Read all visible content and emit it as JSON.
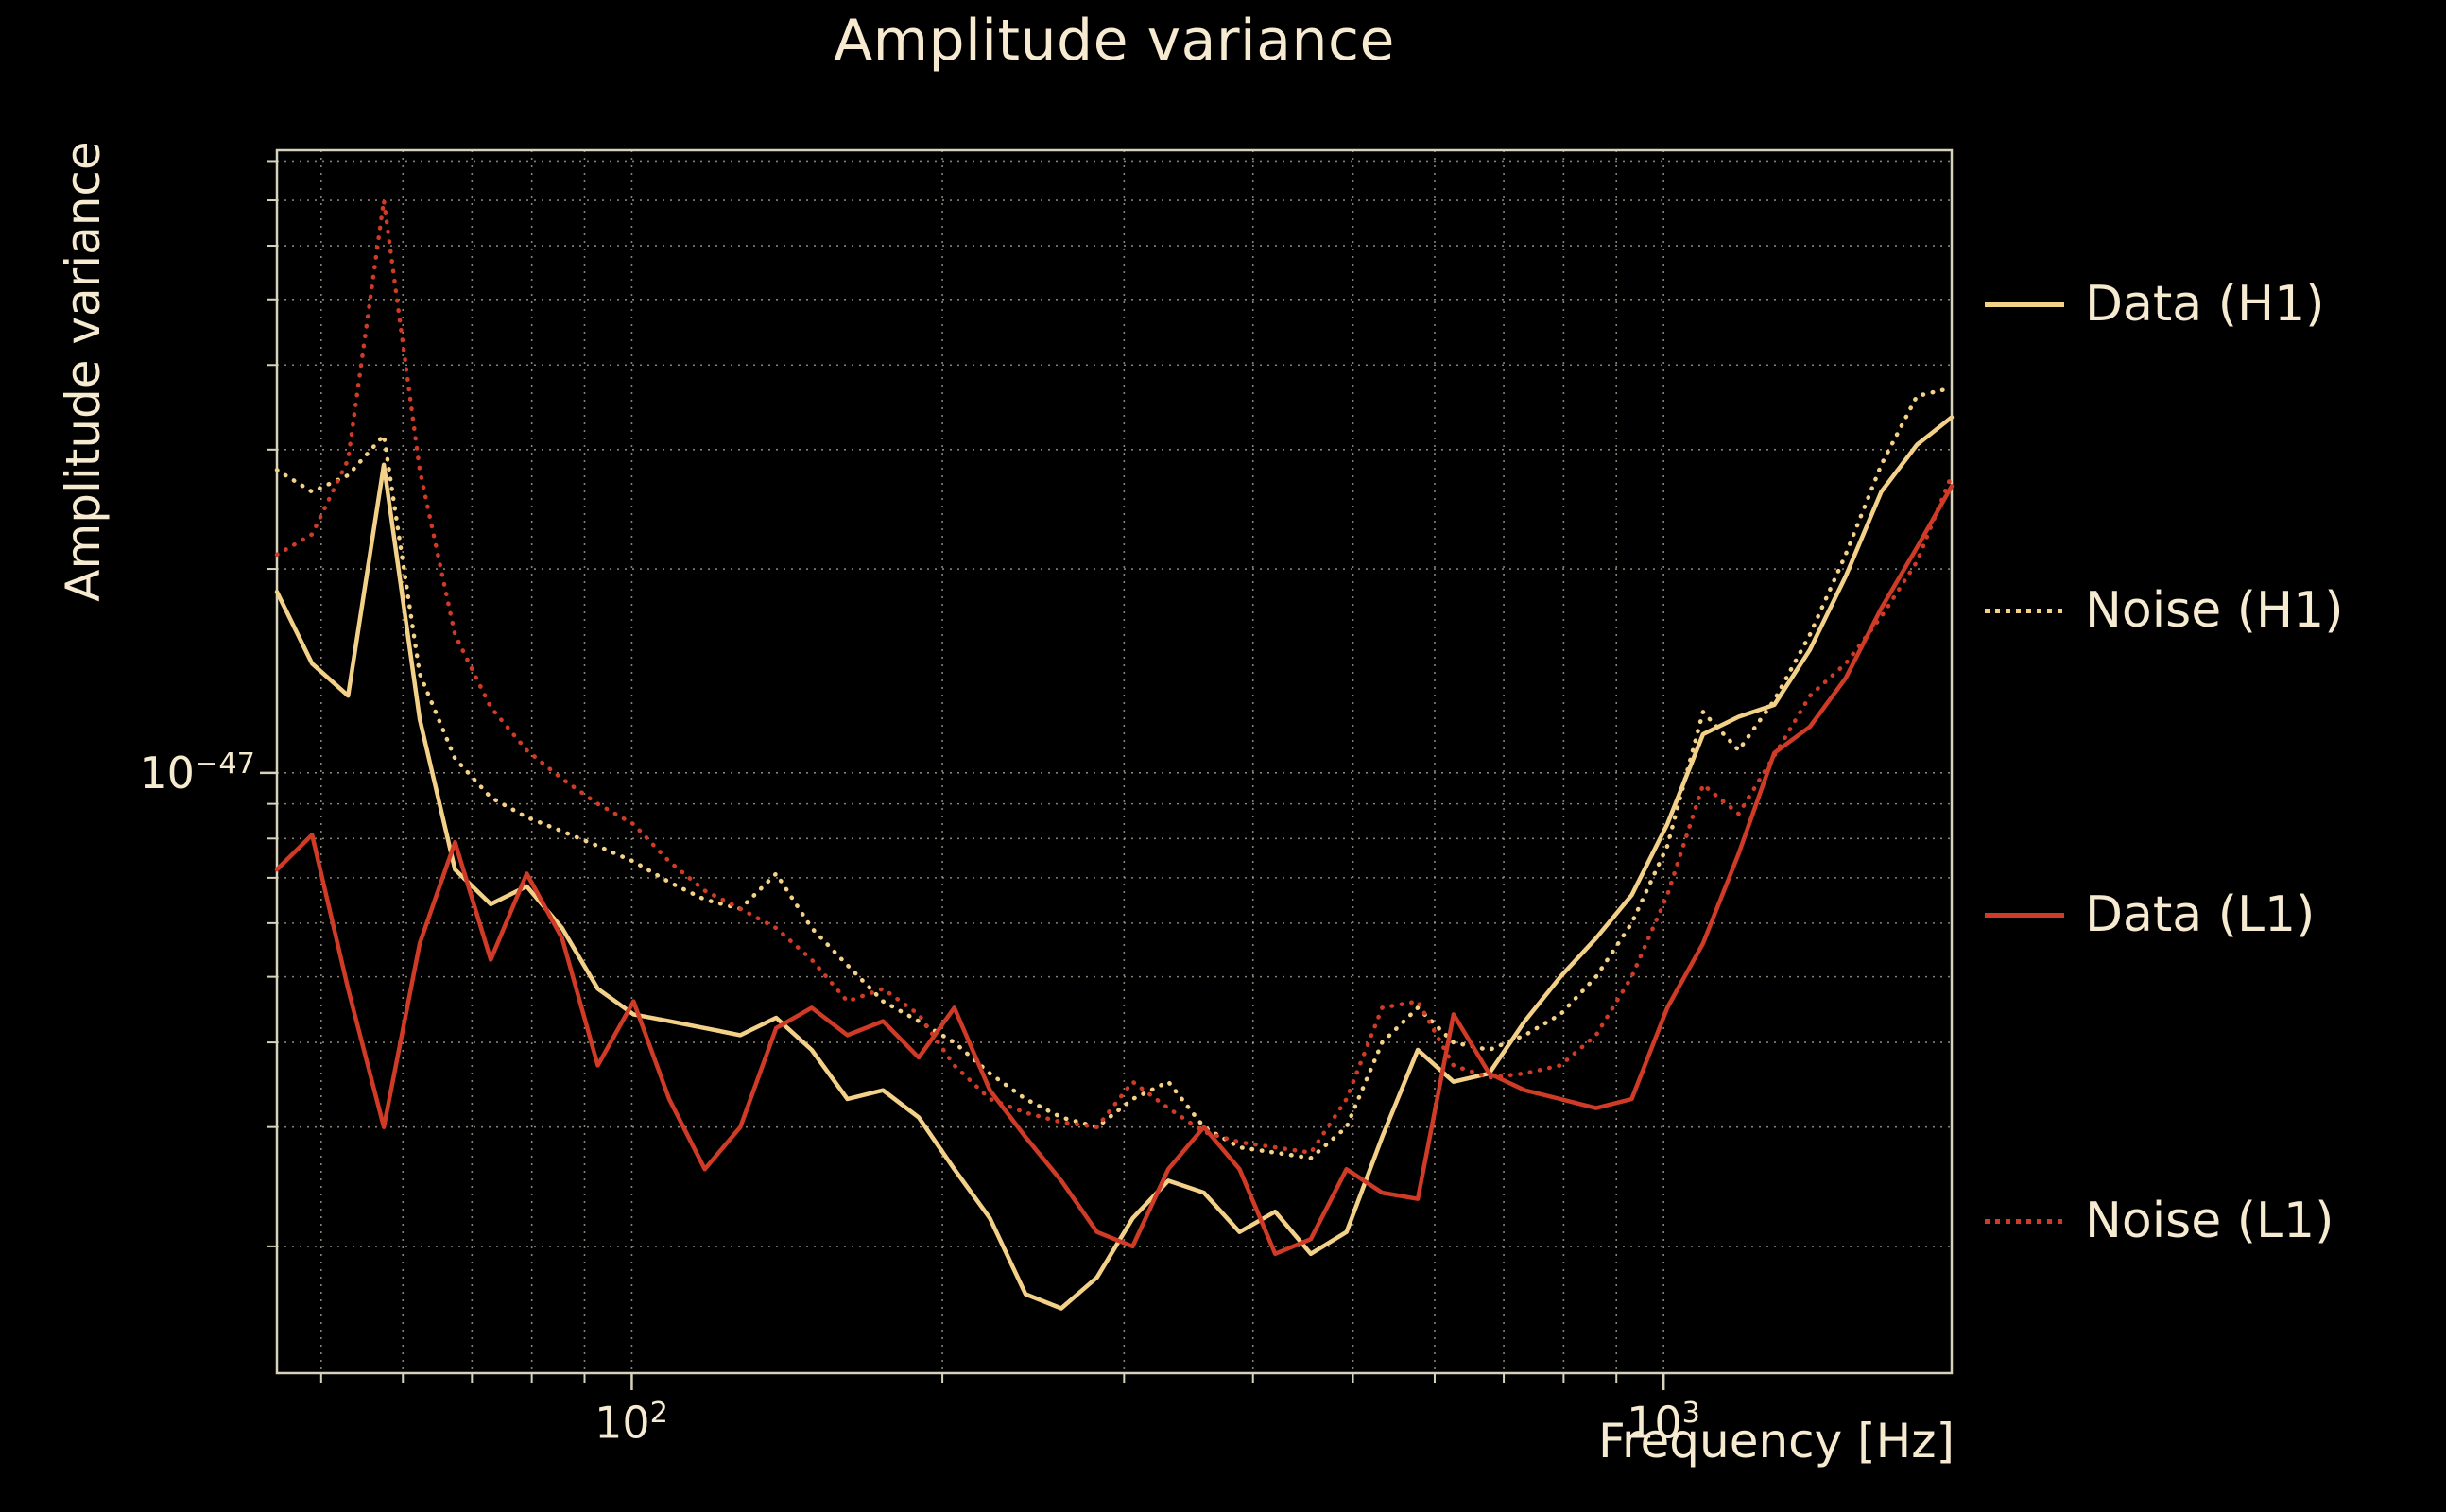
{
  "figure": {
    "background": "#000000",
    "text_color": "#f6ead0",
    "spine_color": "#d9d2ba",
    "grid_color": "#a8a295"
  },
  "chart_data": {
    "type": "line",
    "title": "Amplitude variance",
    "xlabel": "Frequency [Hz]",
    "ylabel": "Amplitude variance",
    "x_scale": "log",
    "y_scale": "log",
    "grid": "both-axes, dotted minor and major",
    "legend_position": "outside-right",
    "xlim": [
      45.3,
      1902
    ],
    "ylim": [
      1.3e-48,
      8.3e-47
    ],
    "x_ticks": [
      {
        "base": "10",
        "exp": "2",
        "value": 100
      },
      {
        "base": "10",
        "exp": "3",
        "value": 1000
      }
    ],
    "y_ticks": [
      {
        "base": "10",
        "exp": "−47",
        "value": 1e-47
      }
    ],
    "values_unit": "1e-48",
    "x_hz": [
      45.3,
      49.0,
      53.1,
      57.5,
      62.3,
      67.4,
      73.0,
      79.1,
      85.6,
      92.7,
      100.4,
      108.7,
      117.7,
      127.4,
      138.0,
      149.4,
      161.8,
      175.2,
      189.7,
      205.4,
      222.4,
      240.8,
      260.8,
      282.4,
      305.8,
      331.1,
      358.5,
      388.2,
      420.3,
      455.1,
      492.8,
      533.6,
      577.8,
      625.7,
      677.5,
      733.6,
      794.3,
      860.1,
      931.3,
      1008.4,
      1091.9,
      1182.3,
      1280.2,
      1386.3,
      1501.1,
      1625.4,
      1760.0,
      1902.0
    ],
    "series": [
      {
        "name": "Data (H1)",
        "color": "#f3d189",
        "line_style": "solid",
        "values": [
          18.5,
          14.5,
          13.0,
          28.5,
          12.0,
          7.2,
          6.4,
          6.8,
          5.9,
          4.8,
          4.4,
          4.3,
          4.2,
          4.1,
          4.35,
          3.9,
          3.3,
          3.4,
          3.1,
          2.6,
          2.2,
          1.7,
          1.62,
          1.8,
          2.2,
          2.5,
          2.4,
          2.1,
          2.25,
          1.95,
          2.1,
          2.9,
          3.9,
          3.5,
          3.6,
          4.3,
          5.0,
          5.7,
          6.6,
          8.4,
          11.4,
          12.1,
          12.6,
          15.2,
          19.5,
          26.0,
          30.5,
          33.5
        ]
      },
      {
        "name": "Noise (H1)",
        "color": "#f3d189",
        "line_style": "dotted",
        "values": [
          28.0,
          26.0,
          27.5,
          31.5,
          14.0,
          10.5,
          9.2,
          8.6,
          8.2,
          7.8,
          7.4,
          6.9,
          6.5,
          6.3,
          7.1,
          5.9,
          5.2,
          4.6,
          4.3,
          4.0,
          3.6,
          3.3,
          3.1,
          3.0,
          3.3,
          3.5,
          3.0,
          2.8,
          2.75,
          2.7,
          3.0,
          4.0,
          4.5,
          4.0,
          3.9,
          4.1,
          4.4,
          5.0,
          6.0,
          7.8,
          12.3,
          10.8,
          12.8,
          16.0,
          21.0,
          28.5,
          36.0,
          37.0
        ]
      },
      {
        "name": "Data (L1)",
        "color": "#cf3b27",
        "line_style": "solid",
        "values": [
          7.2,
          8.1,
          4.8,
          3.0,
          5.6,
          7.9,
          5.3,
          7.1,
          5.7,
          3.7,
          4.6,
          3.3,
          2.6,
          3.0,
          4.2,
          4.5,
          4.1,
          4.3,
          3.8,
          4.5,
          3.4,
          2.9,
          2.5,
          2.1,
          2.0,
          2.6,
          3.0,
          2.6,
          1.95,
          2.05,
          2.6,
          2.4,
          2.35,
          4.4,
          3.6,
          3.4,
          3.3,
          3.2,
          3.3,
          4.5,
          5.6,
          7.6,
          10.7,
          11.7,
          13.8,
          17.5,
          21.5,
          26.5
        ]
      },
      {
        "name": "Noise (L1)",
        "color": "#cf3b27",
        "line_style": "dotted",
        "values": [
          21.0,
          22.5,
          29.0,
          70.0,
          28.0,
          16.0,
          12.5,
          10.8,
          9.8,
          9.0,
          8.4,
          7.4,
          6.7,
          6.3,
          5.9,
          5.3,
          4.6,
          4.8,
          4.4,
          3.7,
          3.3,
          3.15,
          3.05,
          3.0,
          3.5,
          3.2,
          2.95,
          2.85,
          2.8,
          2.75,
          3.3,
          4.5,
          4.6,
          3.7,
          3.55,
          3.6,
          3.7,
          4.1,
          5.0,
          6.6,
          9.6,
          8.7,
          10.6,
          13.0,
          14.5,
          17.0,
          20.5,
          27.5
        ]
      }
    ]
  }
}
